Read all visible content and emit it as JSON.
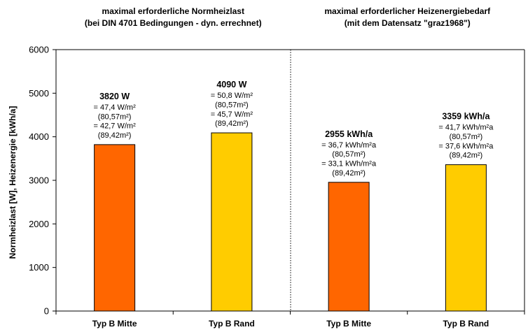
{
  "chart_data": {
    "type": "bar",
    "ylabel": "Normheizlast [W],   Heizenergie [kWh/a]",
    "ylim": [
      0,
      6000
    ],
    "yticks": [
      "0",
      "1000",
      "2000",
      "3000",
      "4000",
      "5000",
      "6000"
    ],
    "grid": false,
    "groups": [
      {
        "title_lines": [
          "maximal erforderliche Normheizlast",
          "(bei DIN 4701 Bedingungen - dyn. errechnet)"
        ],
        "bars": [
          {
            "category": "Typ B Mitte",
            "value": 3820,
            "color": "#FF6600",
            "label": "3820 W",
            "details": [
              "= 47,4 W/m²",
              "(80,57m²)",
              "= 42,7 W/m²",
              "(89,42m²)"
            ]
          },
          {
            "category": "Typ B Rand",
            "value": 4090,
            "color": "#FFCC00",
            "label": "4090 W",
            "details": [
              "= 50,8 W/m²",
              "(80,57m²)",
              "= 45,7 W/m²",
              "(89,42m²)"
            ]
          }
        ]
      },
      {
        "title_lines": [
          "maximal erforderlicher Heizenergiebedarf",
          "(mit dem Datensatz \"graz1968\")"
        ],
        "bars": [
          {
            "category": "Typ B Mitte",
            "value": 2955,
            "color": "#FF6600",
            "label": "2955 kWh/a",
            "details": [
              "= 36,7 kWh/m²a",
              "(80,57m²)",
              "= 33,1 kWh/m²a",
              "(89,42m²)"
            ]
          },
          {
            "category": "Typ B Rand",
            "value": 3359,
            "color": "#FFCC00",
            "label": "3359 kWh/a",
            "details": [
              "= 41,7 kWh/m²a",
              "(80,57m²)",
              "= 37,6 kWh/m²a",
              "(89,42m²)"
            ]
          }
        ]
      }
    ]
  }
}
